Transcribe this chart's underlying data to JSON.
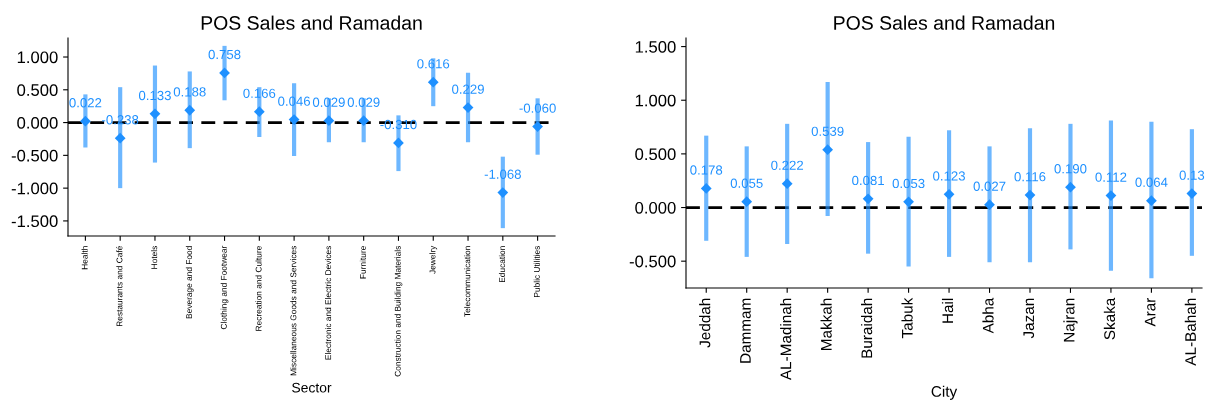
{
  "chart_data": [
    {
      "type": "scatter",
      "title": "POS Sales and Ramadan",
      "xlabel": "Sector",
      "categories": [
        "Health",
        "Restaurants and Café",
        "Hotels",
        "Beverage and Food",
        "Clothing and Footwear",
        "Recreation and Culture",
        "Miscellaneous Goods and Services",
        "Electronic and Electric Devices",
        "Furniture",
        "Construction and Building Materials",
        "Jewelry",
        "Telecommunication",
        "Education",
        "Public Utilities"
      ],
      "values": [
        0.022,
        -0.238,
        0.133,
        0.188,
        0.758,
        0.166,
        0.046,
        0.029,
        0.029,
        -0.31,
        0.616,
        0.229,
        -1.068,
        -0.06
      ],
      "value_labels": [
        "0.022",
        "-0.238",
        "0.133",
        "0.188",
        "0.758",
        "0.166",
        "0.046",
        "0.029",
        "0.029",
        "-0.310",
        "0.616",
        "0.229",
        "-1.068",
        "-0.060"
      ],
      "errors": [
        [
          -0.38,
          0.43
        ],
        [
          -1.0,
          0.54
        ],
        [
          -0.61,
          0.87
        ],
        [
          -0.39,
          0.78
        ],
        [
          0.34,
          1.17
        ],
        [
          -0.22,
          0.54
        ],
        [
          -0.51,
          0.6
        ],
        [
          -0.3,
          0.37
        ],
        [
          -0.3,
          0.37
        ],
        [
          -0.74,
          0.11
        ],
        [
          0.25,
          0.98
        ],
        [
          -0.3,
          0.76
        ],
        [
          -1.61,
          -0.52
        ],
        [
          -0.49,
          0.37
        ]
      ],
      "color": "#1e90ff",
      "marker": "diamond",
      "ylim": [
        -1.73,
        1.29
      ],
      "yticks": [
        {
          "value": -1.5,
          "label": "-1.500"
        },
        {
          "value": -1.0,
          "label": "-1.000"
        },
        {
          "value": -0.5,
          "label": "-0.500"
        },
        {
          "value": 0,
          "label": "0.000"
        },
        {
          "value": 0.5,
          "label": "0.500"
        },
        {
          "value": 1.0,
          "label": "1.000"
        }
      ],
      "ref_lines": [
        {
          "axis": "y",
          "value": 0,
          "label": null,
          "color": "#000000",
          "line_style": "dashed"
        }
      ],
      "grid": false,
      "legend": false
    },
    {
      "type": "scatter",
      "title": "POS Sales and Ramadan",
      "xlabel": "City",
      "categories": [
        "Jeddah",
        "Dammam",
        "AL-Madinah",
        "Makkah",
        "Buraidah",
        "Tabuk",
        "Hail",
        "Abha",
        "Jazan",
        "Najran",
        "Skaka",
        "Arar",
        "AL-Bahah"
      ],
      "values": [
        0.178,
        0.055,
        0.222,
        0.539,
        0.081,
        0.053,
        0.123,
        0.027,
        0.116,
        0.19,
        0.112,
        0.064,
        0.13
      ],
      "value_labels": [
        "0.178",
        "0.055",
        "0.222",
        "0.539",
        "0.081",
        "0.053",
        "0.123",
        "0.027",
        "0.116",
        "0.190",
        "0.112",
        "0.064",
        "0.13"
      ],
      "errors": [
        [
          -0.31,
          0.67
        ],
        [
          -0.46,
          0.57
        ],
        [
          -0.34,
          0.78
        ],
        [
          -0.08,
          1.17
        ],
        [
          -0.43,
          0.61
        ],
        [
          -0.55,
          0.66
        ],
        [
          -0.46,
          0.72
        ],
        [
          -0.51,
          0.57
        ],
        [
          -0.51,
          0.74
        ],
        [
          -0.39,
          0.78
        ],
        [
          -0.59,
          0.81
        ],
        [
          -0.66,
          0.8
        ],
        [
          -0.45,
          0.73
        ]
      ],
      "color": "#1e90ff",
      "marker": "diamond",
      "ylim": [
        -0.75,
        1.58
      ],
      "yticks": [
        {
          "value": -0.5,
          "label": "-0.500"
        },
        {
          "value": 0,
          "label": "0.000"
        },
        {
          "value": 0.5,
          "label": "0.500"
        },
        {
          "value": 1.0,
          "label": "1.000"
        },
        {
          "value": 1.5,
          "label": "1.500"
        }
      ],
      "ref_lines": [
        {
          "axis": "y",
          "value": 0,
          "label": null,
          "color": "#000000",
          "line_style": "dashed"
        }
      ],
      "grid": false,
      "legend": false
    }
  ]
}
